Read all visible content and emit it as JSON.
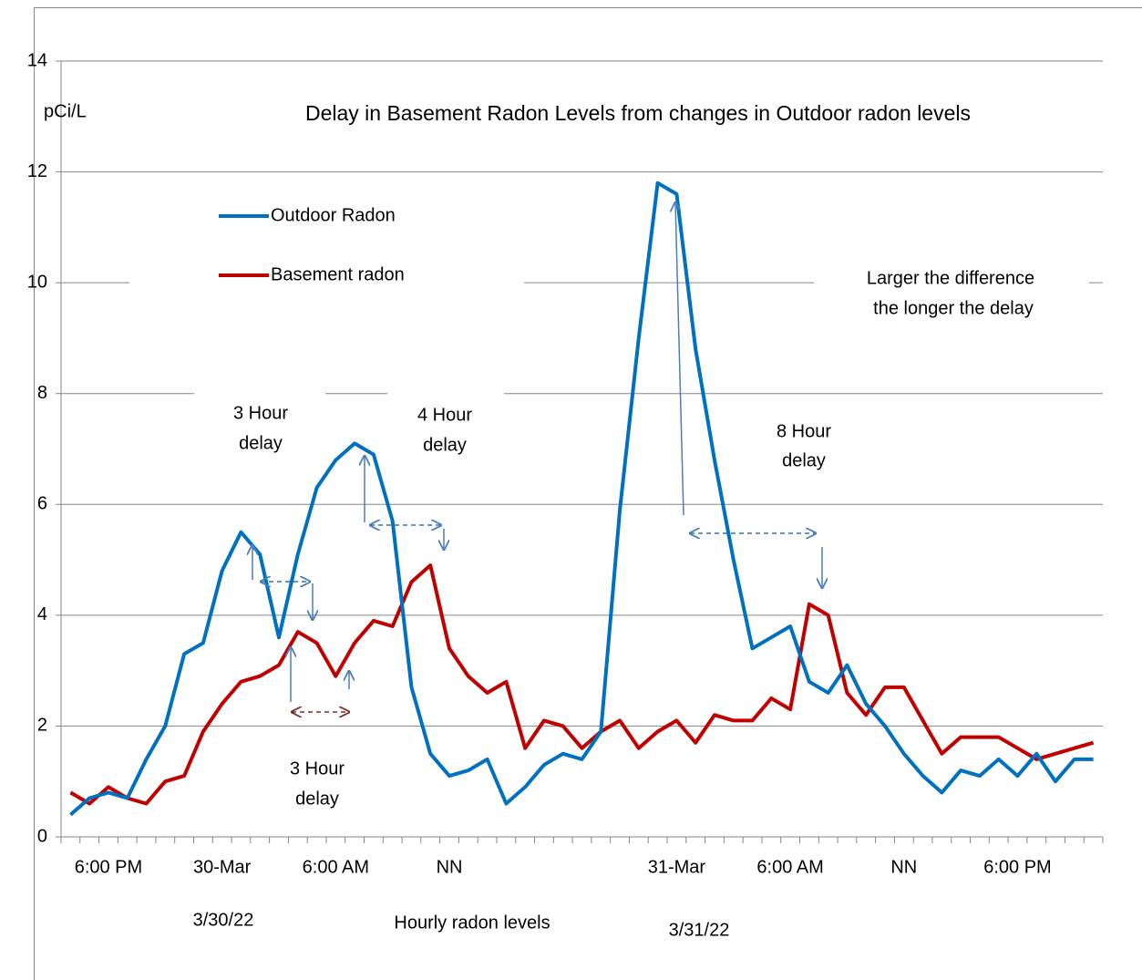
{
  "chart_data": {
    "type": "line",
    "title": "Delay in Basement Radon Levels from changes in Outdoor radon levels",
    "y_label": "pCi/L",
    "x_label": "Hourly radon levels",
    "date_labels": [
      "3/30/22",
      "3/31/22"
    ],
    "annotations": [
      [
        "3 Hour",
        "delay"
      ],
      [
        "4 Hour",
        "delay"
      ],
      [
        "8 Hour",
        "delay"
      ],
      [
        "3 Hour",
        "delay"
      ],
      [
        "Larger the difference",
        "the longer the delay"
      ]
    ],
    "categories": [
      null,
      null,
      "6:00 PM",
      null,
      null,
      null,
      null,
      null,
      "30-Mar",
      null,
      null,
      null,
      null,
      null,
      "6:00 AM",
      null,
      null,
      null,
      null,
      null,
      "NN",
      null,
      null,
      null,
      null,
      null,
      null,
      null,
      null,
      null,
      null,
      null,
      "31-Mar",
      null,
      null,
      null,
      null,
      null,
      "6:00 AM",
      null,
      null,
      null,
      null,
      null,
      "NN",
      null,
      null,
      null,
      null,
      null,
      "6:00 PM",
      null,
      null,
      null,
      null
    ],
    "series": [
      {
        "name": "Outdoor Radon",
        "color": "#0070c0",
        "values": [
          0.4,
          0.7,
          0.8,
          0.7,
          1.4,
          2.0,
          3.3,
          3.5,
          4.8,
          5.5,
          5.1,
          3.6,
          5.1,
          6.3,
          6.8,
          7.1,
          6.9,
          5.7,
          2.7,
          1.5,
          1.1,
          1.2,
          1.4,
          0.6,
          0.9,
          1.3,
          1.5,
          1.4,
          1.9,
          5.9,
          9.0,
          11.8,
          11.6,
          8.8,
          6.8,
          5.0,
          3.4,
          3.6,
          3.8,
          2.8,
          2.6,
          3.1,
          2.4,
          2.0,
          1.5,
          1.1,
          0.8,
          1.2,
          1.1,
          1.4,
          1.1,
          1.5,
          1.0,
          1.4,
          1.4
        ]
      },
      {
        "name": "Basement radon",
        "color": "#c00000",
        "values": [
          0.8,
          0.6,
          0.9,
          0.7,
          0.6,
          1.0,
          1.1,
          1.9,
          2.4,
          2.8,
          2.9,
          3.1,
          3.7,
          3.5,
          2.9,
          3.5,
          3.9,
          3.8,
          4.6,
          4.9,
          3.4,
          2.9,
          2.6,
          2.8,
          1.6,
          2.1,
          2.0,
          1.6,
          1.9,
          2.1,
          1.6,
          1.9,
          2.1,
          1.7,
          2.2,
          2.1,
          2.1,
          2.5,
          2.3,
          4.2,
          4.0,
          2.6,
          2.2,
          2.7,
          2.7,
          2.1,
          1.5,
          1.8,
          1.8,
          1.8,
          1.6,
          1.4,
          1.5,
          1.6,
          1.7
        ]
      }
    ],
    "ylim": [
      0,
      14
    ],
    "yticks": [
      0,
      2,
      4,
      6,
      8,
      10,
      12,
      14
    ],
    "grid": true
  }
}
